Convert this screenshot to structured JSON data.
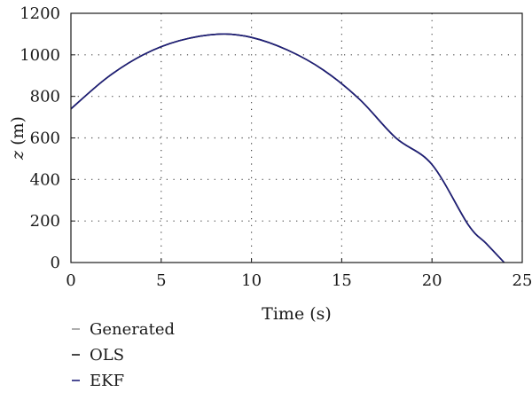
{
  "chart_data": {
    "type": "line",
    "xlabel": "Time (s)",
    "ylabel_var": "z",
    "ylabel_unit": " (m)",
    "xlim": [
      0,
      25
    ],
    "ylim": [
      0,
      1200
    ],
    "xticks": [
      0,
      5,
      10,
      15,
      20,
      25
    ],
    "yticks": [
      0,
      200,
      400,
      600,
      800,
      1000,
      1200
    ],
    "grid": "dotted",
    "legend_position": "below",
    "series": [
      {
        "name": "Generated",
        "color": "#9a9a9a",
        "x": [
          0,
          2,
          4,
          6,
          8.2,
          10,
          12,
          14,
          16,
          18,
          20,
          22,
          23,
          24
        ],
        "y": [
          740,
          890,
          1000,
          1068,
          1100,
          1084,
          1023,
          926,
          785,
          600,
          472,
          183,
          92,
          0
        ]
      },
      {
        "name": "OLS",
        "color": "#1a1a1a",
        "x": [
          0,
          2,
          4,
          6,
          8.2,
          10,
          12,
          14,
          16,
          18,
          20,
          22,
          23,
          24
        ],
        "y": [
          740,
          890,
          1000,
          1068,
          1100,
          1084,
          1023,
          926,
          785,
          600,
          472,
          183,
          92,
          0
        ]
      },
      {
        "name": "EKF",
        "color": "#1f1f7a",
        "x": [
          0,
          2,
          4,
          6,
          8.2,
          10,
          12,
          14,
          16,
          18,
          20,
          22,
          23,
          24
        ],
        "y": [
          740,
          890,
          1000,
          1068,
          1100,
          1084,
          1023,
          926,
          785,
          600,
          472,
          183,
          92,
          0
        ]
      }
    ]
  }
}
